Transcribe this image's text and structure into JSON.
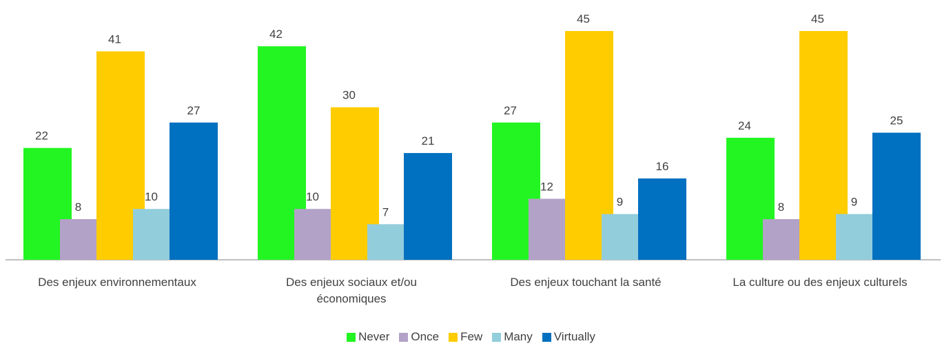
{
  "chart_data": {
    "type": "bar",
    "categories": [
      "Des enjeux environnementaux",
      "Des enjeux sociaux et/ou économiques",
      "Des enjeux touchant la santé",
      "La culture ou des enjeux culturels"
    ],
    "series": [
      {
        "name": "Never",
        "color": "#22f522",
        "values": [
          22,
          42,
          27,
          24
        ]
      },
      {
        "name": "Once",
        "color": "#b3a2c7",
        "values": [
          8,
          10,
          12,
          8
        ]
      },
      {
        "name": "Few",
        "color": "#ffcc00",
        "values": [
          41,
          30,
          45,
          45
        ]
      },
      {
        "name": "Many",
        "color": "#92cddc",
        "values": [
          10,
          7,
          9,
          9
        ]
      },
      {
        "name": "Virtually",
        "color": "#0070c0",
        "values": [
          27,
          21,
          16,
          25
        ]
      }
    ],
    "legend": "bottom"
  }
}
